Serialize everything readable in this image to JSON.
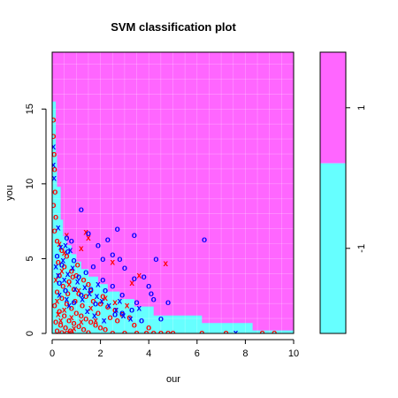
{
  "chart_data": {
    "type": "scatter",
    "title": "SVM classification plot",
    "xlabel": "our",
    "ylabel": "you",
    "xlim": [
      0,
      10
    ],
    "ylim": [
      0,
      18.8
    ],
    "xticks": [
      0,
      2,
      4,
      6,
      8,
      10
    ],
    "yticks": [
      0,
      5,
      10,
      15
    ],
    "grid": true,
    "region_colors": {
      "1": "#ff66ff",
      "-1": "#66ffff"
    },
    "region_boundary_y": [
      [
        0.0,
        15.5
      ],
      [
        0.15,
        15.5
      ],
      [
        0.15,
        12.0
      ],
      [
        0.2,
        12.0
      ],
      [
        0.2,
        9.8
      ],
      [
        0.35,
        9.8
      ],
      [
        0.35,
        7.6
      ],
      [
        0.45,
        7.6
      ],
      [
        0.45,
        6.5
      ],
      [
        0.6,
        6.5
      ],
      [
        0.6,
        5.9
      ],
      [
        0.8,
        5.9
      ],
      [
        0.8,
        5.3
      ],
      [
        1.0,
        5.3
      ],
      [
        1.0,
        4.8
      ],
      [
        1.2,
        4.8
      ],
      [
        1.2,
        4.3
      ],
      [
        1.5,
        4.3
      ],
      [
        1.5,
        3.8
      ],
      [
        1.9,
        3.8
      ],
      [
        1.9,
        3.3
      ],
      [
        2.3,
        3.3
      ],
      [
        2.3,
        2.8
      ],
      [
        2.8,
        2.8
      ],
      [
        2.8,
        2.3
      ],
      [
        3.4,
        2.3
      ],
      [
        3.4,
        1.8
      ],
      [
        4.2,
        1.8
      ],
      [
        4.2,
        1.2
      ],
      [
        6.2,
        1.2
      ],
      [
        6.2,
        0.7
      ],
      [
        8.3,
        0.7
      ],
      [
        8.3,
        0.2
      ],
      [
        10.0,
        0.2
      ]
    ],
    "legend": {
      "levels": [
        "-1",
        "1"
      ],
      "colors": [
        "#66ffff",
        "#ff66ff"
      ],
      "split": 0.395
    },
    "series": [
      {
        "marker": "o",
        "color": "#ff0000",
        "points": [
          [
            0.05,
            14.3
          ],
          [
            0.05,
            13.2
          ],
          [
            0.08,
            12.0
          ],
          [
            0.1,
            11.0
          ],
          [
            0.12,
            9.5
          ],
          [
            0.05,
            8.6
          ],
          [
            0.15,
            7.8
          ],
          [
            0.1,
            6.9
          ],
          [
            0.2,
            6.2
          ],
          [
            0.4,
            5.6
          ],
          [
            0.6,
            5.2
          ],
          [
            0.25,
            4.8
          ],
          [
            0.5,
            4.5
          ],
          [
            0.8,
            4.2
          ],
          [
            1.0,
            3.9
          ],
          [
            1.3,
            3.6
          ],
          [
            1.5,
            3.3
          ],
          [
            0.3,
            3.9
          ],
          [
            0.7,
            3.5
          ],
          [
            0.9,
            3.0
          ],
          [
            1.1,
            2.7
          ],
          [
            1.4,
            2.5
          ],
          [
            1.7,
            2.2
          ],
          [
            2.0,
            2.0
          ],
          [
            2.3,
            1.8
          ],
          [
            2.6,
            1.6
          ],
          [
            2.9,
            1.3
          ],
          [
            3.2,
            1.1
          ],
          [
            0.2,
            2.8
          ],
          [
            0.4,
            2.4
          ],
          [
            0.6,
            2.0
          ],
          [
            0.8,
            1.7
          ],
          [
            1.0,
            1.4
          ],
          [
            1.2,
            1.2
          ],
          [
            1.4,
            1.0
          ],
          [
            1.6,
            0.8
          ],
          [
            1.8,
            0.6
          ],
          [
            2.0,
            0.4
          ],
          [
            2.2,
            0.3
          ],
          [
            0.1,
            1.9
          ],
          [
            0.3,
            1.5
          ],
          [
            0.5,
            1.2
          ],
          [
            0.7,
            0.9
          ],
          [
            0.9,
            0.7
          ],
          [
            1.1,
            0.5
          ],
          [
            1.3,
            0.3
          ],
          [
            0.15,
            0.8
          ],
          [
            0.35,
            0.6
          ],
          [
            0.55,
            0.4
          ],
          [
            0.75,
            0.2
          ],
          [
            0.2,
            0.2
          ],
          [
            0.4,
            0.1
          ],
          [
            0.6,
            0.05
          ],
          [
            0.8,
            0.1
          ],
          [
            1.5,
            0.1
          ],
          [
            2.5,
            0.05
          ],
          [
            3.0,
            0.05
          ],
          [
            3.5,
            0.05
          ],
          [
            3.9,
            0.05
          ],
          [
            4.2,
            0.05
          ],
          [
            4.5,
            0.05
          ],
          [
            4.8,
            0.05
          ],
          [
            5.0,
            0.05
          ],
          [
            6.2,
            0.05
          ],
          [
            7.2,
            0.05
          ],
          [
            8.7,
            0.05
          ],
          [
            9.2,
            0.05
          ],
          [
            2.7,
            0.9
          ],
          [
            3.4,
            0.6
          ],
          [
            4.0,
            0.4
          ],
          [
            1.9,
            1.4
          ],
          [
            2.4,
            1.1
          ],
          [
            0.95,
            2.2
          ],
          [
            1.25,
            1.9
          ],
          [
            0.45,
            3.2
          ],
          [
            0.65,
            2.7
          ],
          [
            1.6,
            2.9
          ],
          [
            2.1,
            2.5
          ],
          [
            1.05,
            4.6
          ],
          [
            0.85,
            3.8
          ]
        ]
      },
      {
        "marker": "x",
        "color": "#ff0000",
        "points": [
          [
            0.3,
            6.0
          ],
          [
            0.5,
            5.4
          ],
          [
            1.4,
            6.8
          ],
          [
            1.5,
            6.4
          ],
          [
            1.2,
            5.7
          ],
          [
            2.5,
            4.8
          ],
          [
            4.7,
            4.7
          ],
          [
            3.6,
            3.9
          ],
          [
            3.3,
            3.4
          ],
          [
            0.4,
            4.2
          ],
          [
            0.7,
            3.3
          ],
          [
            1.1,
            2.9
          ],
          [
            0.2,
            2.2
          ],
          [
            0.5,
            1.6
          ],
          [
            0.8,
            1.1
          ],
          [
            1.6,
            1.7
          ],
          [
            2.2,
            2.4
          ],
          [
            2.6,
            2.1
          ],
          [
            0.35,
            0.9
          ],
          [
            0.9,
            0.35
          ],
          [
            1.8,
            0.9
          ],
          [
            3.1,
            1.9
          ],
          [
            0.15,
            3.6
          ],
          [
            0.6,
            6.6
          ],
          [
            1.2,
            0.8
          ],
          [
            0.25,
            1.3
          ]
        ]
      },
      {
        "marker": "o",
        "color": "#0000ff",
        "points": [
          [
            1.2,
            8.3
          ],
          [
            1.5,
            6.7
          ],
          [
            2.7,
            7.0
          ],
          [
            3.4,
            6.6
          ],
          [
            2.3,
            6.3
          ],
          [
            6.3,
            6.3
          ],
          [
            0.6,
            6.4
          ],
          [
            0.8,
            6.2
          ],
          [
            1.9,
            5.9
          ],
          [
            2.1,
            5.0
          ],
          [
            2.5,
            5.3
          ],
          [
            2.8,
            5.0
          ],
          [
            4.3,
            5.0
          ],
          [
            3.8,
            3.8
          ],
          [
            3.4,
            3.7
          ],
          [
            2.5,
            3.2
          ],
          [
            2.1,
            3.6
          ],
          [
            1.7,
            4.5
          ],
          [
            1.4,
            4.1
          ],
          [
            1.1,
            3.8
          ],
          [
            0.9,
            4.9
          ],
          [
            0.65,
            5.5
          ],
          [
            2.9,
            2.6
          ],
          [
            4.1,
            2.7
          ],
          [
            4.8,
            2.1
          ],
          [
            3.5,
            2.1
          ],
          [
            3.3,
            1.6
          ],
          [
            2.9,
            1.4
          ],
          [
            2.6,
            1.3
          ],
          [
            1.6,
            3.0
          ],
          [
            1.2,
            2.6
          ],
          [
            0.9,
            2.1
          ],
          [
            0.55,
            2.9
          ],
          [
            0.3,
            3.4
          ],
          [
            0.4,
            4.6
          ],
          [
            0.2,
            5.2
          ],
          [
            3.0,
            4.4
          ],
          [
            4.0,
            3.2
          ],
          [
            2.2,
            2.9
          ],
          [
            1.8,
            2.0
          ],
          [
            4.5,
            1.0
          ],
          [
            3.7,
            0.9
          ],
          [
            4.2,
            2.3
          ]
        ]
      },
      {
        "marker": "x",
        "color": "#0000ff",
        "points": [
          [
            0.05,
            12.5
          ],
          [
            0.05,
            11.3
          ],
          [
            0.08,
            10.4
          ],
          [
            0.25,
            7.1
          ],
          [
            0.35,
            5.8
          ],
          [
            0.55,
            5.9
          ],
          [
            0.75,
            5.6
          ],
          [
            0.45,
            4.9
          ],
          [
            0.15,
            4.5
          ],
          [
            0.85,
            4.4
          ],
          [
            0.25,
            3.9
          ],
          [
            0.65,
            4.0
          ],
          [
            1.05,
            3.5
          ],
          [
            1.35,
            3.1
          ],
          [
            1.55,
            2.7
          ],
          [
            1.85,
            2.5
          ],
          [
            2.05,
            2.2
          ],
          [
            2.35,
            1.9
          ],
          [
            2.65,
            1.6
          ],
          [
            2.95,
            1.2
          ],
          [
            3.25,
            1.0
          ],
          [
            0.5,
            3.6
          ],
          [
            0.95,
            3.0
          ],
          [
            1.25,
            2.3
          ],
          [
            0.7,
            1.9
          ],
          [
            1.45,
            1.5
          ],
          [
            1.75,
            1.2
          ],
          [
            2.15,
            0.9
          ],
          [
            7.6,
            0.05
          ],
          [
            3.6,
            1.7
          ],
          [
            2.8,
            2.2
          ],
          [
            1.9,
            3.3
          ],
          [
            0.3,
            2.6
          ],
          [
            0.6,
            2.3
          ]
        ]
      }
    ]
  }
}
